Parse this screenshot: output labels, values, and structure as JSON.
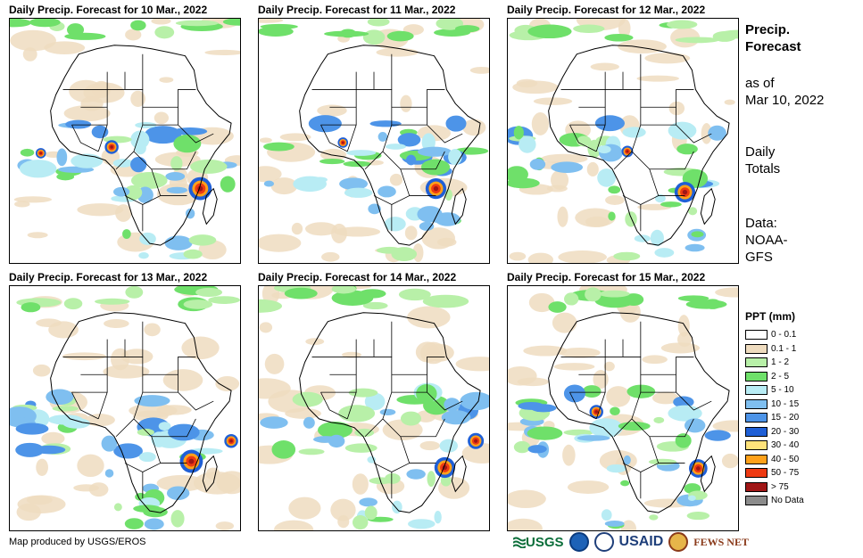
{
  "map_titles": [
    "Daily Precip. Forecast for 10 Mar., 2022",
    "Daily Precip. Forecast for 11 Mar., 2022",
    "Daily Precip. Forecast for 12 Mar., 2022",
    "Daily Precip. Forecast for 13 Mar., 2022",
    "Daily Precip. Forecast for 14 Mar., 2022",
    "Daily Precip. Forecast for 15 Mar., 2022"
  ],
  "sidebar": {
    "title_line1": "Precip.",
    "title_line2": "Forecast",
    "asof_line1": "as of",
    "asof_line2": "Mar 10, 2022",
    "totals_line1": "Daily",
    "totals_line2": "Totals",
    "data_line1": "Data:",
    "data_line2": "NOAA-",
    "data_line3": "GFS"
  },
  "legend": {
    "title": "PPT (mm)",
    "items": [
      {
        "label": "0 - 0.1",
        "color": "#ffffff"
      },
      {
        "label": "0.1 - 1",
        "color": "#efdcbf"
      },
      {
        "label": "1 - 2",
        "color": "#b8f0a8"
      },
      {
        "label": "2 - 5",
        "color": "#6fe06a"
      },
      {
        "label": "5 - 10",
        "color": "#b8ecf4"
      },
      {
        "label": "10 - 15",
        "color": "#7fbff0"
      },
      {
        "label": "15 - 20",
        "color": "#4d94e8"
      },
      {
        "label": "20 - 30",
        "color": "#1f5fd6"
      },
      {
        "label": "30 - 40",
        "color": "#ffe27a"
      },
      {
        "label": "40 - 50",
        "color": "#ffa11a"
      },
      {
        "label": "50 - 75",
        "color": "#ee3a12"
      },
      {
        "label": "> 75",
        "color": "#a01616"
      },
      {
        "label": "No Data",
        "color": "#8c8c8c"
      }
    ]
  },
  "credit": "Map produced by USGS/EROS",
  "logos": {
    "usgs": "USGS",
    "usaid": "USAID",
    "fewsnet": "FEWS NET"
  }
}
